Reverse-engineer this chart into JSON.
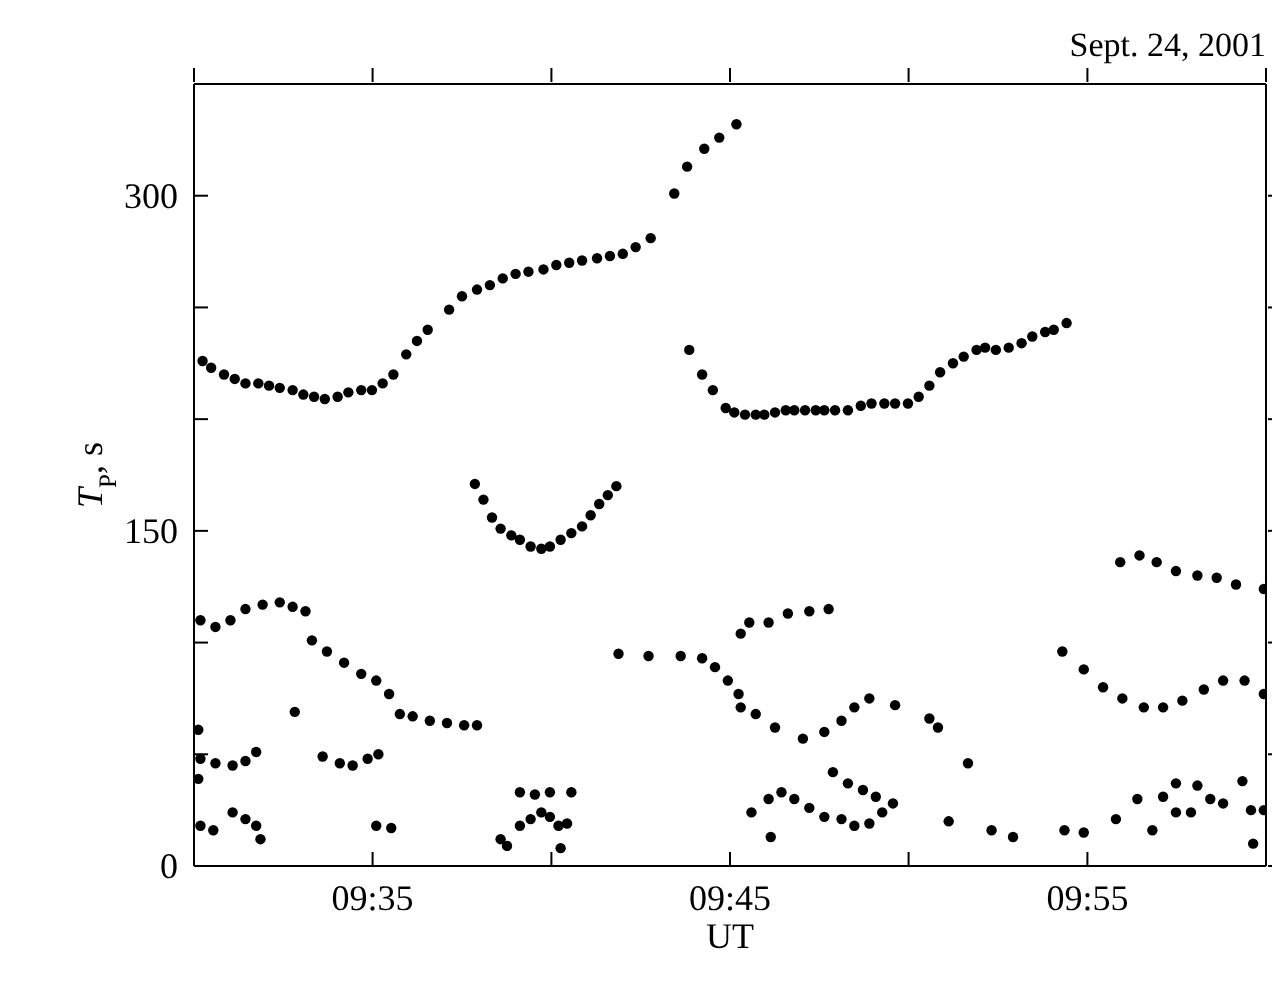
{
  "chart_data": {
    "type": "scatter",
    "xlabel": "UT",
    "ylabel": "T$_{P}$, s",
    "annotations": [
      "Sept. 24, 2001"
    ],
    "marker": "circle",
    "xlim": [
      9.5,
      10.0
    ],
    "xticks": [
      {
        "value": 9.5,
        "label": null
      },
      {
        "value": 9.5833,
        "label": "09:35"
      },
      {
        "value": 9.6667,
        "label": null
      },
      {
        "value": 9.75,
        "label": "09:45"
      },
      {
        "value": 9.8333,
        "label": null
      },
      {
        "value": 9.9167,
        "label": "09:55"
      },
      {
        "value": 10.0,
        "label": null
      }
    ],
    "ylim": [
      0,
      350
    ],
    "yticks": [
      0,
      {
        "value": 50,
        "label": null
      },
      {
        "value": 100,
        "label": null
      },
      150,
      {
        "value": 200,
        "label": null
      },
      {
        "value": 250,
        "label": null
      },
      300
    ],
    "series": [
      {
        "color": "#000000",
        "x": [
          9.504,
          9.508,
          9.514,
          9.519,
          9.524,
          9.53,
          9.535,
          9.54,
          9.546,
          9.551,
          9.556,
          9.561,
          9.567,
          9.572,
          9.578,
          9.583,
          9.588,
          9.593,
          9.599,
          9.604,
          9.609,
          9.619,
          9.625,
          9.632,
          9.638,
          9.644,
          9.65,
          9.656,
          9.663,
          9.669,
          9.675,
          9.681,
          9.688,
          9.694,
          9.7,
          9.706,
          9.713,
          9.724,
          9.73,
          9.738,
          9.745,
          9.753,
          9.631,
          9.635,
          9.639,
          9.643,
          9.648,
          9.652,
          9.657,
          9.662,
          9.666,
          9.671,
          9.676,
          9.681,
          9.685,
          9.689,
          9.693,
          9.697,
          9.731,
          9.737,
          9.742,
          9.748,
          9.752,
          9.757,
          9.762,
          9.766,
          9.771,
          9.776,
          9.78,
          9.785,
          9.79,
          9.794,
          9.799,
          9.805,
          9.811,
          9.816,
          9.822,
          9.827,
          9.833,
          9.838,
          9.843,
          9.848,
          9.854,
          9.859,
          9.865,
          9.869,
          9.874,
          9.88,
          9.886,
          9.891,
          9.897,
          9.901,
          9.907,
          9.503,
          9.51,
          9.517,
          9.524,
          9.532,
          9.54,
          9.546,
          9.552,
          9.555,
          9.562,
          9.57,
          9.578,
          9.585,
          9.591,
          9.596,
          9.602,
          9.61,
          9.618,
          9.626,
          9.632,
          9.547,
          9.502,
          9.503,
          9.51,
          9.518,
          9.524,
          9.529,
          9.502,
          9.56,
          9.568,
          9.574,
          9.581,
          9.586,
          9.503,
          9.509,
          9.518,
          9.524,
          9.529,
          9.531,
          9.585,
          9.592,
          9.643,
          9.646,
          9.652,
          9.659,
          9.666,
          9.676,
          9.652,
          9.657,
          9.662,
          9.666,
          9.67,
          9.674,
          9.671,
          9.698,
          9.712,
          9.727,
          9.737,
          9.743,
          9.749,
          9.754,
          9.755,
          9.762,
          9.771,
          9.784,
          9.794,
          9.802,
          9.808,
          9.815,
          9.827,
          9.843,
          9.847,
          9.861,
          9.755,
          9.759,
          9.768,
          9.777,
          9.787,
          9.796,
          9.76,
          9.768,
          9.774,
          9.78,
          9.787,
          9.794,
          9.802,
          9.808,
          9.815,
          9.821,
          9.826,
          9.798,
          9.805,
          9.812,
          9.818,
          9.769,
          9.852,
          9.872,
          9.882,
          9.906,
          9.915,
          9.905,
          9.915,
          9.924,
          9.933,
          9.943,
          9.952,
          9.961,
          9.971,
          9.98,
          9.99,
          9.999,
          9.932,
          9.941,
          9.949,
          9.958,
          9.968,
          9.977,
          9.986,
          9.999,
          9.93,
          9.94,
          9.952,
          9.958,
          9.968,
          9.974,
          9.98,
          9.993,
          9.999,
          9.958,
          9.965,
          9.947,
          9.989,
          9.994
        ],
        "values": [
          226,
          223,
          220,
          218,
          216,
          216,
          215,
          214,
          213,
          211,
          210,
          209,
          210,
          212,
          213,
          213,
          216,
          220,
          229,
          235,
          240,
          249,
          255,
          258,
          260,
          263,
          265,
          266,
          267,
          269,
          270,
          271,
          272,
          273,
          274,
          277,
          281,
          301,
          313,
          321,
          326,
          332,
          171,
          164,
          156,
          151,
          148,
          146,
          143,
          142,
          143,
          146,
          149,
          152,
          157,
          162,
          166,
          170,
          231,
          220,
          213,
          205,
          203,
          202,
          202,
          202,
          203,
          204,
          204,
          204,
          204,
          204,
          204,
          204,
          206,
          207,
          207,
          207,
          207,
          210,
          215,
          221,
          225,
          228,
          231,
          232,
          231,
          232,
          234,
          237,
          239,
          240,
          243,
          110,
          107,
          110,
          115,
          117,
          118,
          116,
          114,
          101,
          96,
          91,
          86,
          83,
          77,
          68,
          67,
          65,
          64,
          63,
          63,
          69,
          61,
          48,
          46,
          45,
          47,
          51,
          39,
          49,
          46,
          45,
          48,
          50,
          18,
          16,
          24,
          21,
          18,
          12,
          18,
          17,
          12,
          9,
          33,
          32,
          33,
          33,
          18,
          21,
          24,
          22,
          18,
          19,
          8,
          95,
          94,
          94,
          93,
          89,
          83,
          77,
          71,
          68,
          62,
          57,
          60,
          65,
          71,
          75,
          72,
          66,
          62,
          46,
          104,
          109,
          109,
          113,
          114,
          115,
          24,
          30,
          33,
          30,
          26,
          22,
          21,
          18,
          19,
          24,
          28,
          42,
          37,
          34,
          31,
          13,
          20,
          16,
          13,
          16,
          15,
          96,
          88,
          80,
          75,
          71,
          71,
          74,
          79,
          83,
          83,
          77,
          136,
          139,
          136,
          132,
          130,
          129,
          126,
          124,
          21,
          30,
          31,
          37,
          36,
          30,
          28,
          25,
          25,
          24,
          24,
          16,
          38,
          10
        ]
      }
    ]
  }
}
